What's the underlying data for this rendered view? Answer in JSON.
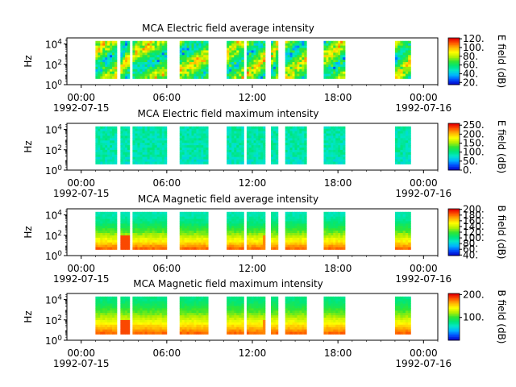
{
  "chart_data": [
    {
      "type": "heatmap",
      "title": "MCA  Electric field average intensity",
      "ylabel": "Hz",
      "yscale": "log",
      "yticks": [
        {
          "exp": "0"
        },
        {
          "exp": "2"
        },
        {
          "exp": "4"
        }
      ],
      "xticks": [
        "00:00",
        "06:00",
        "12:00",
        "18:00",
        "00:00"
      ],
      "xtick_hours": [
        0,
        6,
        12,
        18,
        24
      ],
      "date_labels": [
        {
          "hour": 0,
          "text": "1992-07-15"
        },
        {
          "hour": 24,
          "text": "1992-07-16"
        }
      ],
      "xlim_hours": [
        -1,
        25
      ],
      "colorbar_label": "E field (dB)",
      "colorbar_ticks": [
        "120.",
        "100.",
        "80.",
        "60.",
        "40.",
        "20."
      ],
      "colorbar_range": [
        15,
        122
      ],
      "colormap": "rainbow",
      "data_spans_hours": [
        [
          1.0,
          2.5
        ],
        [
          2.75,
          3.4
        ],
        [
          3.6,
          6.0
        ],
        [
          6.9,
          8.9
        ],
        [
          10.2,
          11.4
        ],
        [
          11.6,
          12.9
        ],
        [
          13.3,
          13.8
        ],
        [
          14.3,
          15.8
        ],
        [
          17.0,
          18.5
        ],
        [
          22.0,
          23.1
        ]
      ]
    },
    {
      "type": "heatmap",
      "title": "MCA  Electric field maximum intensity",
      "ylabel": "Hz",
      "yscale": "log",
      "yticks": [
        {
          "exp": "0"
        },
        {
          "exp": "2"
        },
        {
          "exp": "4"
        }
      ],
      "xticks": [
        "00:00",
        "06:00",
        "12:00",
        "18:00",
        "00:00"
      ],
      "xtick_hours": [
        0,
        6,
        12,
        18,
        24
      ],
      "date_labels": [
        {
          "hour": 0,
          "text": "1992-07-15"
        },
        {
          "hour": 24,
          "text": "1992-07-16"
        }
      ],
      "xlim_hours": [
        -1,
        25
      ],
      "colorbar_label": "E field (dB)",
      "colorbar_ticks": [
        "250.",
        "200.",
        "150.",
        "100.",
        "50.",
        "0."
      ],
      "colorbar_range": [
        0,
        260
      ],
      "colormap": "rainbow",
      "data_spans_hours": [
        [
          1.0,
          2.5
        ],
        [
          2.75,
          3.4
        ],
        [
          3.6,
          6.0
        ],
        [
          6.9,
          8.9
        ],
        [
          10.2,
          11.4
        ],
        [
          11.6,
          12.9
        ],
        [
          13.3,
          13.8
        ],
        [
          14.3,
          15.8
        ],
        [
          17.0,
          18.5
        ],
        [
          22.0,
          23.1
        ]
      ]
    },
    {
      "type": "heatmap",
      "title": "MCA  Magnetic field average intensity",
      "ylabel": "Hz",
      "yscale": "log",
      "yticks": [
        {
          "exp": "0"
        },
        {
          "exp": "2"
        },
        {
          "exp": "4"
        }
      ],
      "xticks": [
        "00:00",
        "06:00",
        "12:00",
        "18:00",
        "00:00"
      ],
      "xtick_hours": [
        0,
        6,
        12,
        18,
        24
      ],
      "date_labels": [
        {
          "hour": 0,
          "text": "1992-07-15"
        },
        {
          "hour": 24,
          "text": "1992-07-16"
        }
      ],
      "xlim_hours": [
        -1,
        25
      ],
      "colorbar_label": "B field (dB)",
      "colorbar_ticks": [
        "200.",
        "180.",
        "160.",
        "140.",
        "120.",
        "100.",
        "80.",
        "60.",
        "40."
      ],
      "colorbar_range": [
        38,
        202
      ],
      "colormap": "rainbow",
      "data_spans_hours": [
        [
          1.0,
          2.5
        ],
        [
          2.75,
          3.4
        ],
        [
          3.6,
          6.0
        ],
        [
          6.9,
          8.9
        ],
        [
          10.2,
          11.4
        ],
        [
          11.6,
          12.9
        ],
        [
          13.3,
          13.8
        ],
        [
          14.3,
          15.8
        ],
        [
          17.0,
          18.5
        ],
        [
          22.0,
          23.1
        ]
      ]
    },
    {
      "type": "heatmap",
      "title": "MCA  Magnetic field maximum intensity",
      "ylabel": "Hz",
      "yscale": "log",
      "yticks": [
        {
          "exp": "0"
        },
        {
          "exp": "2"
        },
        {
          "exp": "4"
        }
      ],
      "xticks": [
        "00:00",
        "06:00",
        "12:00",
        "18:00",
        "00:00"
      ],
      "xtick_hours": [
        0,
        6,
        12,
        18,
        24
      ],
      "date_labels": [
        {
          "hour": 0,
          "text": "1992-07-15"
        },
        {
          "hour": 24,
          "text": "1992-07-16"
        }
      ],
      "xlim_hours": [
        -1,
        25
      ],
      "colorbar_label": "B field (dB)",
      "colorbar_ticks": [
        "200.",
        "100."
      ],
      "colorbar_range": [
        0,
        205
      ],
      "colormap": "rainbow",
      "data_spans_hours": [
        [
          1.0,
          2.5
        ],
        [
          2.75,
          3.4
        ],
        [
          3.6,
          6.0
        ],
        [
          6.9,
          8.9
        ],
        [
          10.2,
          11.4
        ],
        [
          11.6,
          12.9
        ],
        [
          13.3,
          13.8
        ],
        [
          14.3,
          15.8
        ],
        [
          17.0,
          18.5
        ],
        [
          22.0,
          23.1
        ]
      ]
    }
  ]
}
